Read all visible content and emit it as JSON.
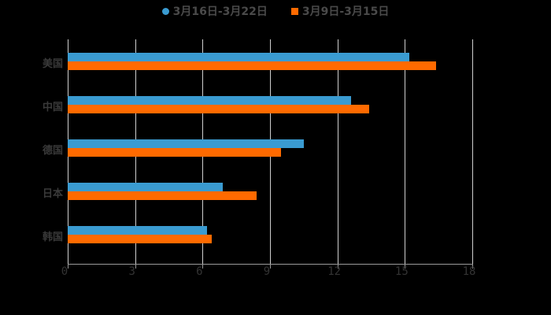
{
  "chart_data": {
    "type": "bar",
    "orientation": "horizontal",
    "title": "",
    "xlabel": "",
    "ylabel": "",
    "categories": [
      "美国",
      "中国",
      "德国",
      "日本",
      "韩国"
    ],
    "series": [
      {
        "name": "3月16日-3月22日",
        "color": "#3a9bd1",
        "values": [
          15.2,
          12.6,
          10.5,
          6.9,
          6.2
        ]
      },
      {
        "name": "3月9日-3月15日",
        "color": "#ff6a00",
        "values": [
          16.4,
          13.4,
          9.5,
          8.4,
          6.4
        ]
      }
    ],
    "xlim": [
      0,
      18
    ],
    "xticks": [
      "0",
      "3",
      "6",
      "9",
      "12",
      "15",
      "18"
    ],
    "grid": true,
    "legend_position": "top"
  },
  "legend": {
    "items": [
      {
        "label": "3月16日-3月22日",
        "color": "#3a9bd1",
        "marker": "circle"
      },
      {
        "label": "3月9日-3月15日",
        "color": "#ff6a00",
        "marker": "square"
      }
    ]
  }
}
